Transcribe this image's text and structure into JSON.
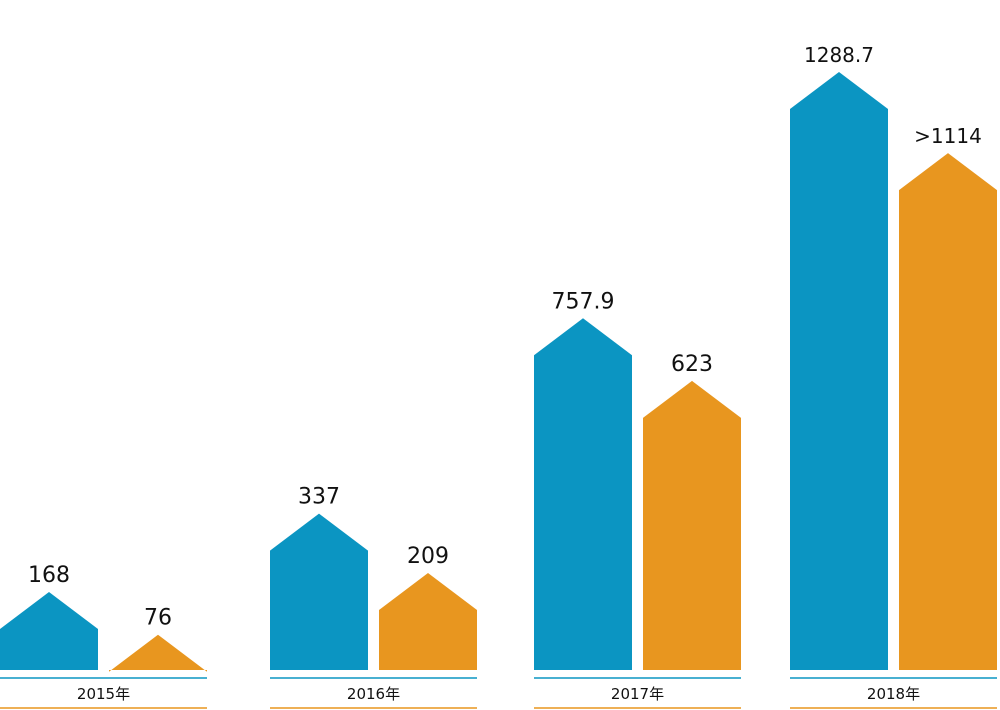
{
  "chart_data": {
    "type": "bar",
    "title": "",
    "xlabel": "",
    "ylabel": "",
    "categories": [
      "2015年",
      "2016年",
      "2017年",
      "2018年"
    ],
    "series": [
      {
        "values": [
          168,
          337,
          757.9,
          1288.7
        ],
        "labels": [
          "168",
          "337",
          "757.9",
          "1288.7"
        ]
      },
      {
        "values": [
          76,
          209,
          623,
          1114
        ],
        "labels": [
          "76",
          "209",
          "623",
          ">1114"
        ]
      }
    ],
    "colors": [
      "#0b95c2",
      "#e8961f"
    ],
    "ylim": [
      0,
      1288.7
    ],
    "grid": false,
    "legend": "none"
  }
}
